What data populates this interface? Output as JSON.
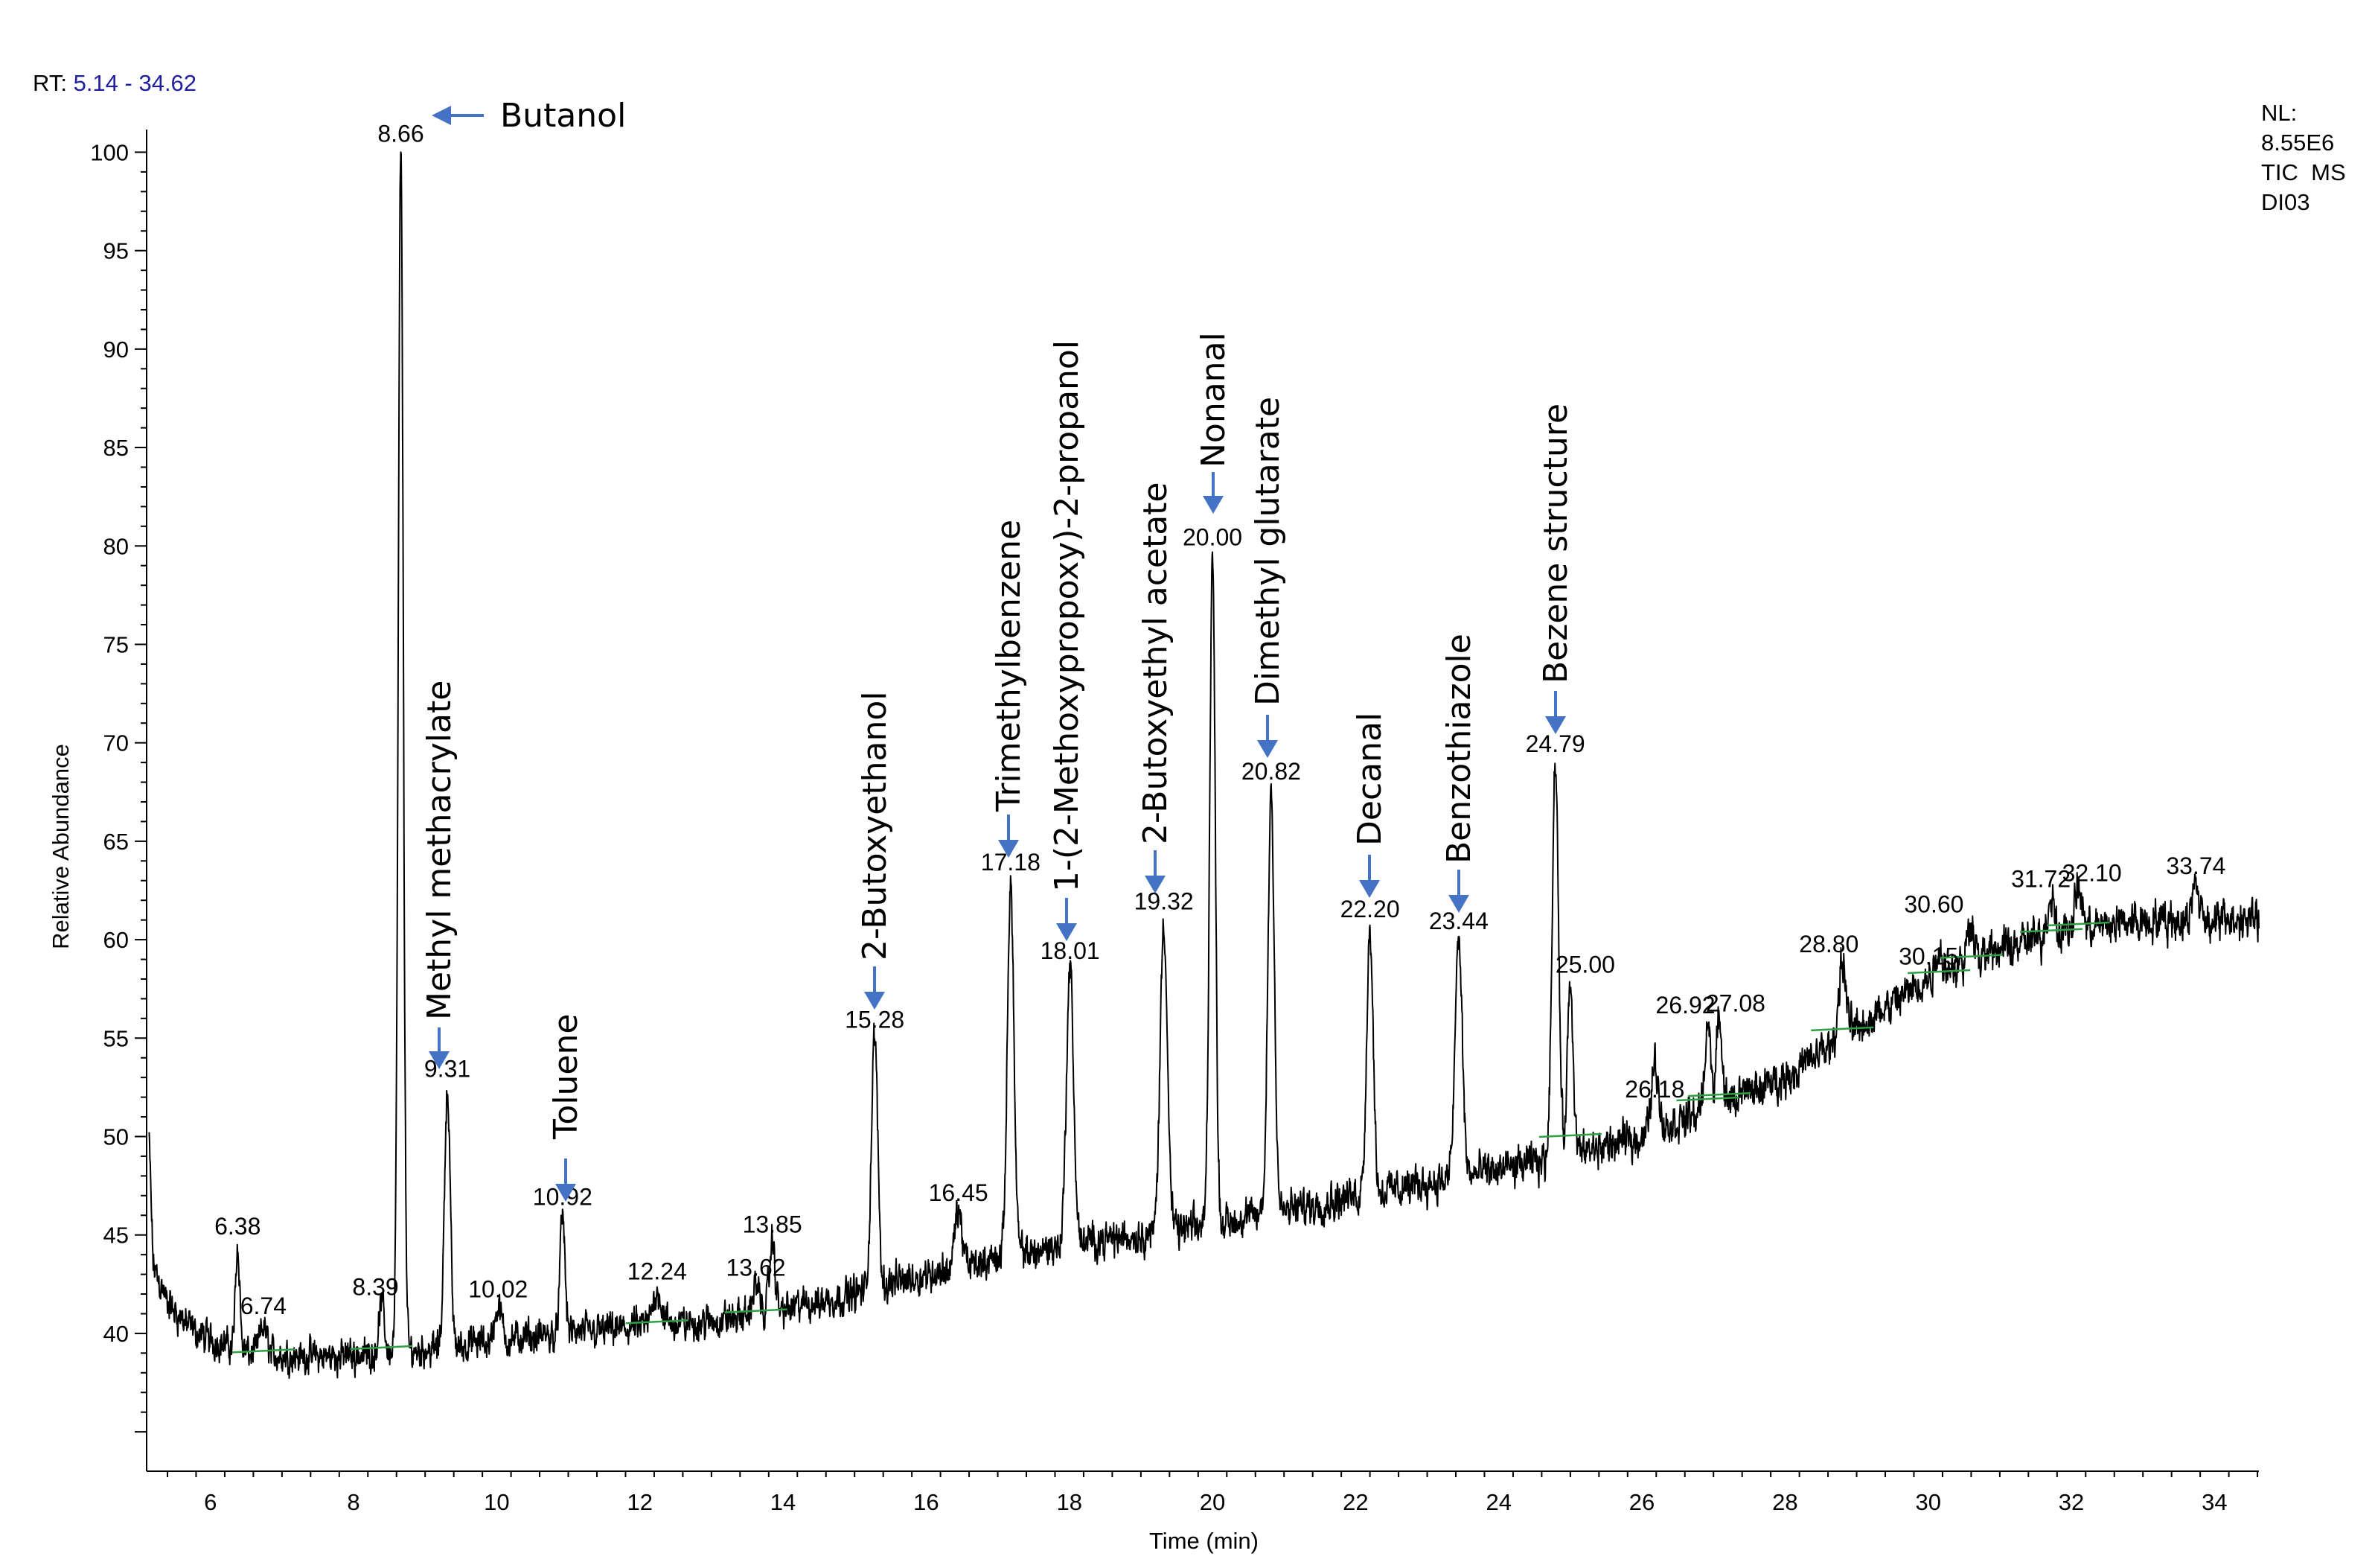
{
  "header": {
    "rt_prefix": "RT:",
    "rt_range": "5.14 - 34.62",
    "nl_label": "NL:",
    "nl_value": "8.55E6",
    "scan_type": "TIC  MS",
    "sample": "DI03"
  },
  "colors": {
    "trace": "#000000",
    "arrow": "#4472C4",
    "baseline_mark": "#2EA043",
    "rt_range": "#1f1f9f"
  },
  "chart_data": {
    "type": "line",
    "title": "",
    "xlabel": "Time (min)",
    "ylabel": "Relative Abundance",
    "xlim": [
      5.14,
      34.62
    ],
    "ylim": [
      33,
      101
    ],
    "x_ticks": [
      6,
      8,
      10,
      12,
      14,
      16,
      18,
      20,
      22,
      24,
      26,
      28,
      30,
      32,
      34
    ],
    "y_ticks": [
      40,
      45,
      50,
      55,
      60,
      65,
      70,
      75,
      80,
      85,
      90,
      95,
      100
    ],
    "baseline_anchors": [
      [
        5.14,
        50.2
      ],
      [
        5.2,
        43.5
      ],
      [
        5.4,
        41.5
      ],
      [
        5.8,
        40.0
      ],
      [
        6.5,
        39.0
      ],
      [
        7.5,
        38.8
      ],
      [
        8.5,
        39.0
      ],
      [
        10.0,
        39.6
      ],
      [
        11.0,
        40.0
      ],
      [
        12.0,
        40.3
      ],
      [
        13.0,
        40.6
      ],
      [
        14.0,
        41.2
      ],
      [
        15.0,
        42.0
      ],
      [
        16.0,
        43.0
      ],
      [
        17.0,
        43.8
      ],
      [
        18.0,
        44.5
      ],
      [
        19.0,
        45.0
      ],
      [
        20.0,
        45.5
      ],
      [
        21.0,
        46.2
      ],
      [
        22.0,
        47.0
      ],
      [
        23.0,
        47.6
      ],
      [
        24.0,
        48.3
      ],
      [
        25.0,
        49.0
      ],
      [
        26.0,
        50.0
      ],
      [
        27.0,
        51.5
      ],
      [
        28.0,
        53.0
      ],
      [
        29.0,
        55.5
      ],
      [
        30.0,
        58.0
      ],
      [
        31.0,
        59.5
      ],
      [
        32.0,
        60.5
      ],
      [
        33.0,
        61.0
      ],
      [
        34.0,
        61.0
      ],
      [
        34.62,
        61.0
      ]
    ],
    "noise_amplitude": 0.9,
    "peaks": [
      {
        "rt": 6.38,
        "height": 44.5,
        "label": "6.38",
        "width": 0.03
      },
      {
        "rt": 6.74,
        "height": 40.3,
        "label": "6.74",
        "width": 0.05
      },
      {
        "rt": 8.39,
        "height": 41.5,
        "label": "8.39",
        "width": 0.04
      },
      {
        "rt": 8.66,
        "height": 100,
        "label": "8.66",
        "width": 0.035
      },
      {
        "rt": 9.31,
        "height": 52.5,
        "label": "9.31",
        "width": 0.04
      },
      {
        "rt": 10.02,
        "height": 41.3,
        "label": "10.02",
        "width": 0.05
      },
      {
        "rt": 10.92,
        "height": 46.0,
        "label": "10.92",
        "width": 0.035
      },
      {
        "rt": 12.24,
        "height": 42.2,
        "label": "12.24",
        "width": 0.06
      },
      {
        "rt": 13.62,
        "height": 42.4,
        "label": "13.62",
        "width": 0.05
      },
      {
        "rt": 13.85,
        "height": 44.6,
        "label": "13.85",
        "width": 0.04
      },
      {
        "rt": 15.28,
        "height": 55.0,
        "label": "15.28",
        "width": 0.045
      },
      {
        "rt": 16.45,
        "height": 46.2,
        "label": "16.45",
        "width": 0.05
      },
      {
        "rt": 17.18,
        "height": 63.0,
        "label": "17.18",
        "width": 0.045
      },
      {
        "rt": 18.01,
        "height": 58.5,
        "label": "18.01",
        "width": 0.05
      },
      {
        "rt": 19.32,
        "height": 61.0,
        "label": "19.32",
        "width": 0.05
      },
      {
        "rt": 20.0,
        "height": 79.5,
        "label": "20.00",
        "width": 0.04
      },
      {
        "rt": 20.82,
        "height": 67.6,
        "label": "20.82",
        "width": 0.045
      },
      {
        "rt": 22.2,
        "height": 60.6,
        "label": "22.20",
        "width": 0.045
      },
      {
        "rt": 23.44,
        "height": 60.0,
        "label": "23.44",
        "width": 0.05
      },
      {
        "rt": 24.79,
        "height": 69.0,
        "label": "24.79",
        "width": 0.045
      },
      {
        "rt": 25.0,
        "height": 57.8,
        "label": "25.00",
        "width": 0.04
      },
      {
        "rt": 26.18,
        "height": 53.8,
        "label": "26.18",
        "width": 0.05
      },
      {
        "rt": 26.92,
        "height": 55.8,
        "label": "26.92",
        "width": 0.04
      },
      {
        "rt": 27.08,
        "height": 55.9,
        "label": "27.08",
        "width": 0.04
      },
      {
        "rt": 28.8,
        "height": 58.9,
        "label": "28.80",
        "width": 0.05
      },
      {
        "rt": 30.15,
        "height": 59.5,
        "label": "30.15",
        "width": 0.05
      },
      {
        "rt": 30.6,
        "height": 61.0,
        "label": "30.60",
        "width": 0.05
      },
      {
        "rt": 31.72,
        "height": 62.3,
        "label": "31.72",
        "width": 0.05
      },
      {
        "rt": 32.1,
        "height": 62.6,
        "label": "32.10",
        "width": 0.05
      },
      {
        "rt": 33.74,
        "height": 62.8,
        "label": "33.74",
        "width": 0.05
      }
    ],
    "compounds": [
      {
        "name": "Butanol",
        "peak_label": "8.66",
        "arrow": "left"
      },
      {
        "name": "Methyl methacrylate",
        "peak_label": "9.31",
        "arrow": "down"
      },
      {
        "name": "Toluene",
        "peak_label": "10.92",
        "arrow": "down"
      },
      {
        "name": "2-Butoxyethanol",
        "peak_label": "15.28",
        "arrow": "down"
      },
      {
        "name": "Trimethylbenzene",
        "peak_label": "17.18",
        "arrow": "down"
      },
      {
        "name": "1-(2-Methoxypropoxy)-2-propanol",
        "peak_label": "18.01",
        "arrow": "down"
      },
      {
        "name": "2-Butoxyethyl acetate",
        "peak_label": "19.32",
        "arrow": "down"
      },
      {
        "name": "Nonanal",
        "peak_label": "20.00",
        "arrow": "down"
      },
      {
        "name": "Dimethyl glutarate",
        "peak_label": "20.82",
        "arrow": "down"
      },
      {
        "name": "Decanal",
        "peak_label": "22.20",
        "arrow": "down"
      },
      {
        "name": "Benzothiazole",
        "peak_label": "23.44",
        "arrow": "down"
      },
      {
        "name": "Bezene structure",
        "peak_label": "24.79",
        "arrow": "down"
      }
    ]
  }
}
